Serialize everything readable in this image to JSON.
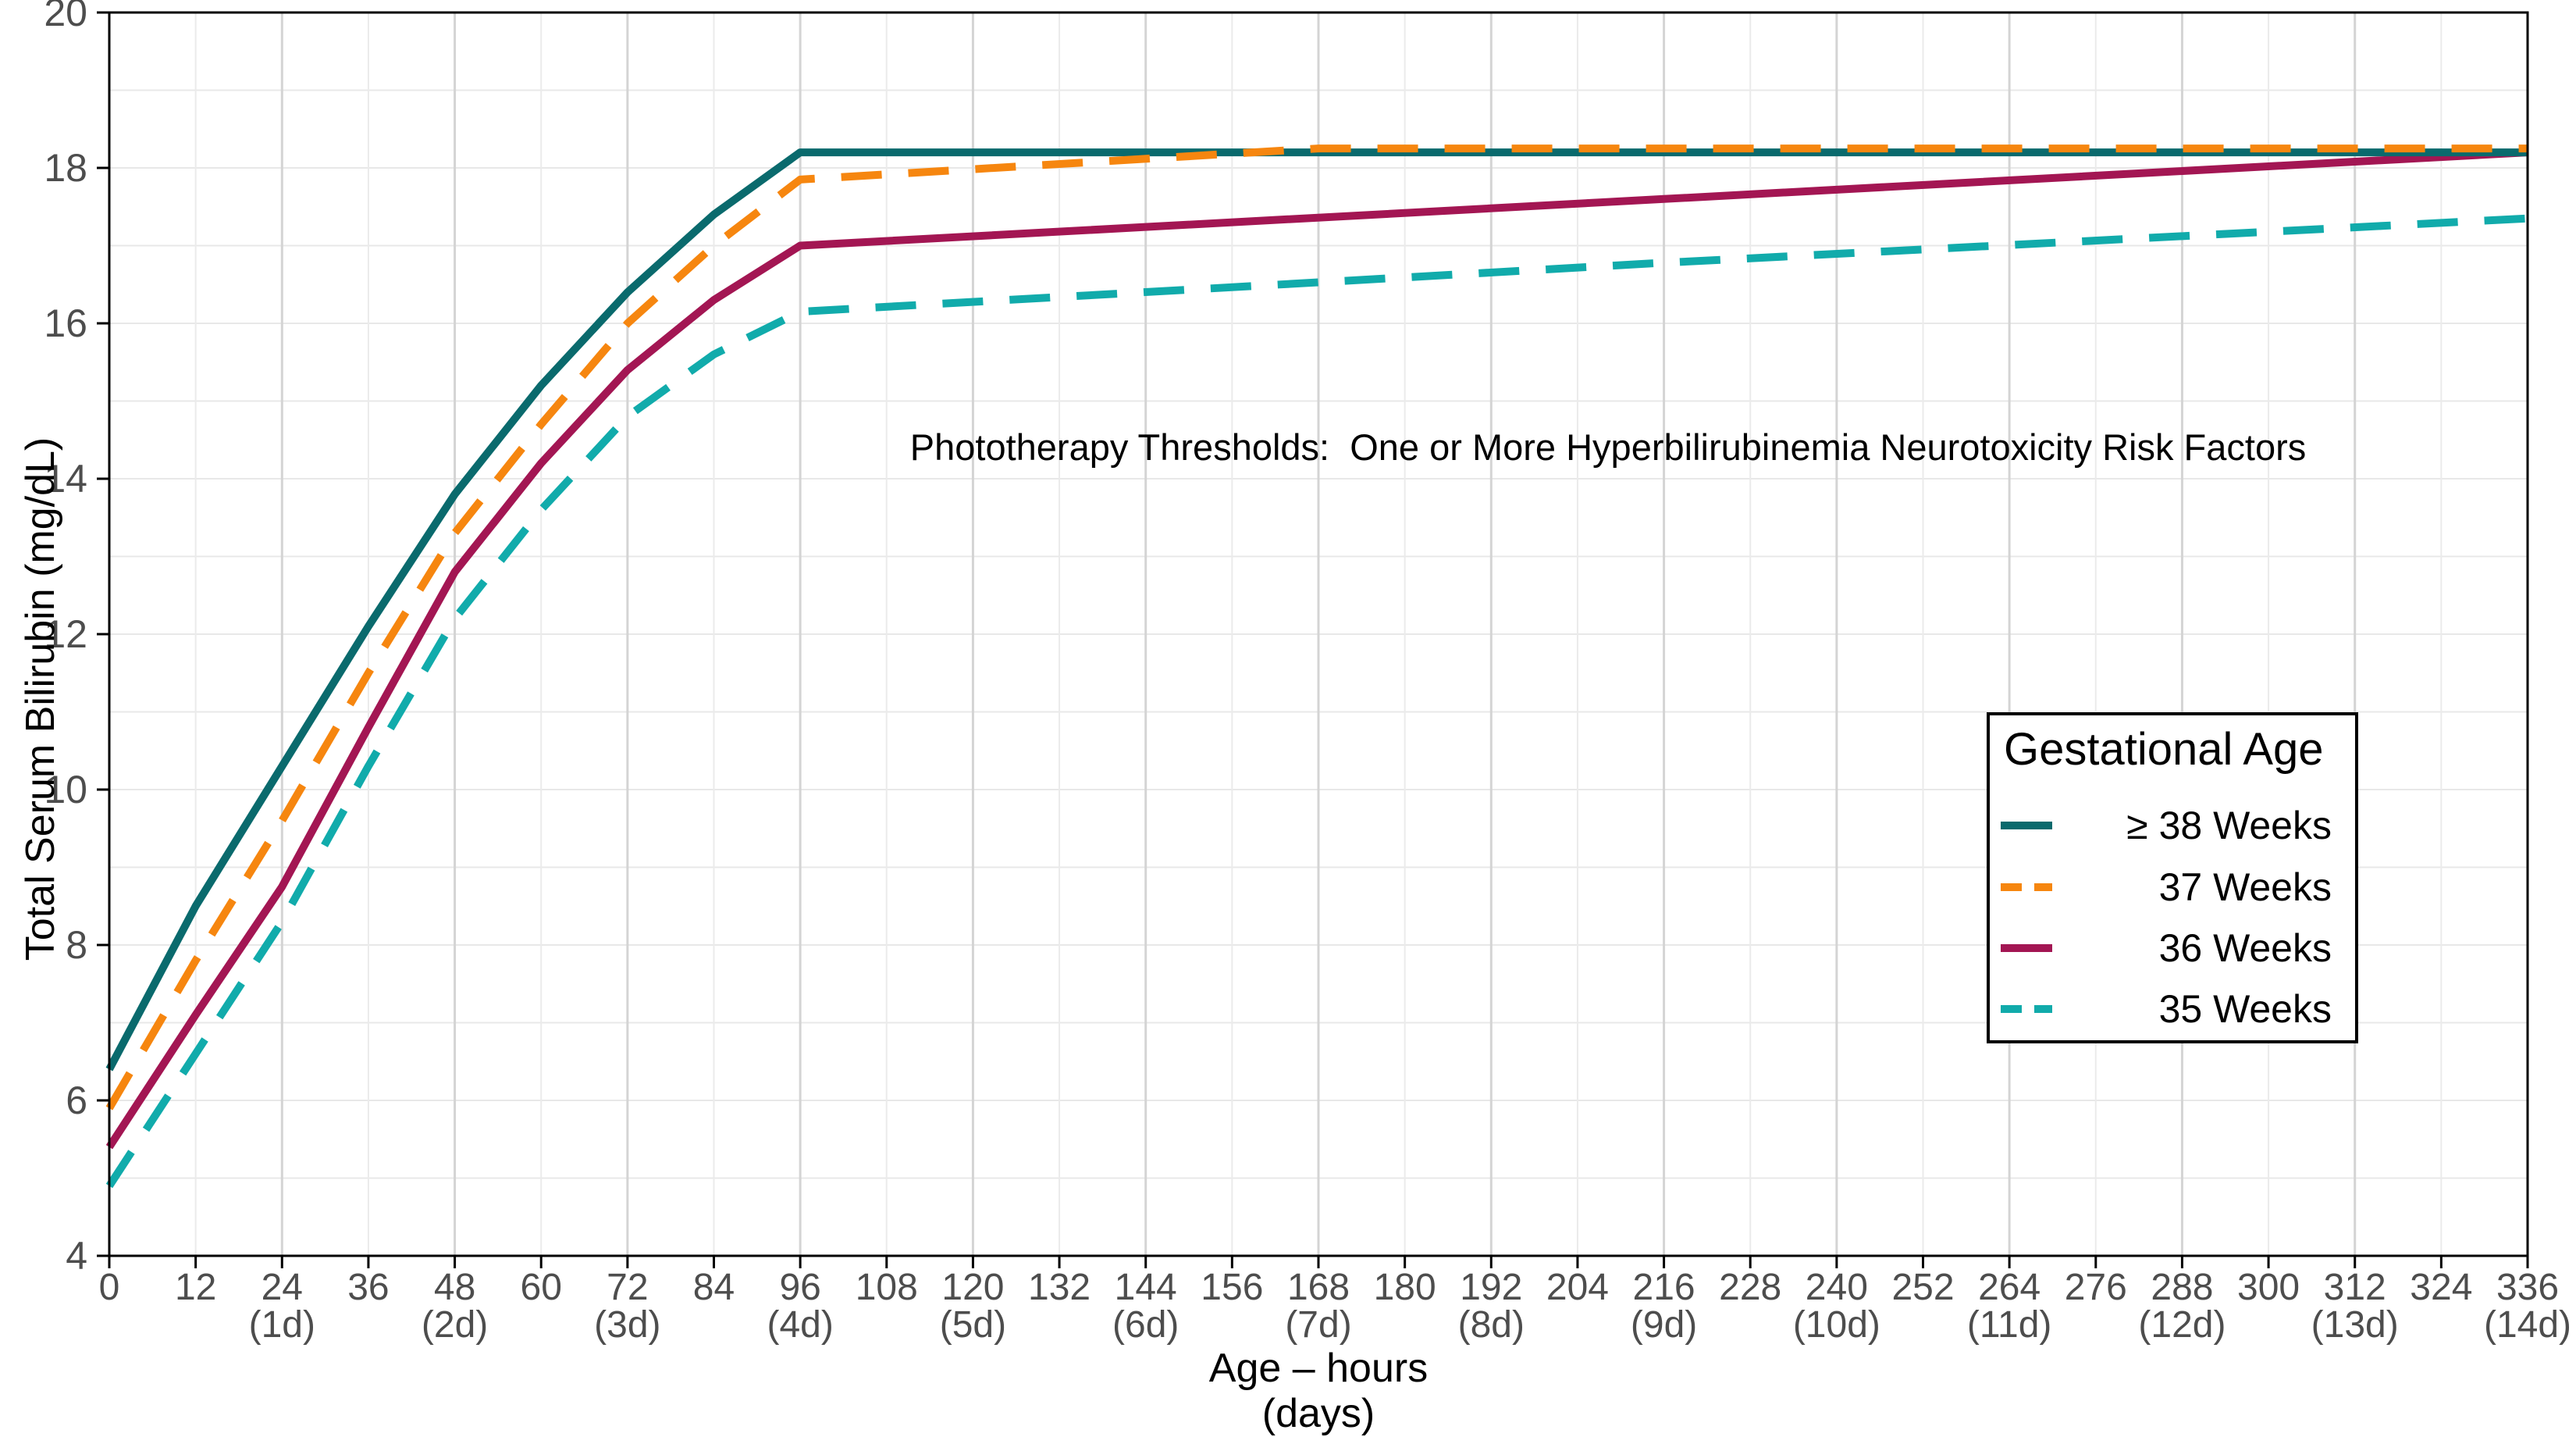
{
  "figure": {
    "title": "Phototherapy Thresholds:  One or More Hyperbilirubinemia Neurotoxicity Risk Factors",
    "y_axis_title": "Total Serum Bilirubin (mg/dL)",
    "x_axis_title_line1": "Age – hours",
    "x_axis_title_line2": "(days)"
  },
  "legend": {
    "title": "Gestational Age",
    "position": "inside-right-middle"
  },
  "chart_data": {
    "type": "line",
    "title": "Phototherapy Thresholds:  One or More Hyperbilirubinemia Neurotoxicity Risk Factors",
    "xlabel": "Age – hours (days)",
    "ylabel": "Total Serum Bilirubin (mg/dL)",
    "xlim": [
      0,
      336
    ],
    "ylim": [
      4,
      20
    ],
    "grid": true,
    "y_ticks": [
      4,
      6,
      8,
      10,
      12,
      14,
      16,
      18,
      20
    ],
    "x_tick_hours": [
      0,
      12,
      24,
      36,
      48,
      60,
      72,
      84,
      96,
      108,
      120,
      132,
      144,
      156,
      168,
      180,
      192,
      204,
      216,
      228,
      240,
      252,
      264,
      276,
      288,
      300,
      312,
      324,
      336
    ],
    "x_day_labels": {
      "24": "(1d)",
      "48": "(2d)",
      "72": "(3d)",
      "96": "(4d)",
      "120": "(5d)",
      "144": "(6d)",
      "168": "(7d)",
      "192": "(8d)",
      "216": "(9d)",
      "240": "(10d)",
      "264": "(11d)",
      "288": "(12d)",
      "312": "(13d)",
      "336": "(14d)"
    },
    "series": [
      {
        "name": "≥ 38 Weeks",
        "color": "#0A6A6D",
        "style": "solid",
        "dash": null,
        "points": [
          [
            0,
            6.4
          ],
          [
            12,
            8.5
          ],
          [
            24,
            10.3
          ],
          [
            36,
            12.1
          ],
          [
            48,
            13.8
          ],
          [
            60,
            15.2
          ],
          [
            72,
            16.4
          ],
          [
            84,
            17.4
          ],
          [
            96,
            18.2
          ],
          [
            168,
            18.2
          ],
          [
            336,
            18.2
          ]
        ]
      },
      {
        "name": "37 Weeks",
        "color": "#F6860F",
        "style": "dashed",
        "dash": "52 34",
        "points": [
          [
            0,
            5.9
          ],
          [
            12,
            7.8
          ],
          [
            24,
            9.6
          ],
          [
            36,
            11.5
          ],
          [
            48,
            13.3
          ],
          [
            60,
            14.7
          ],
          [
            72,
            16.0
          ],
          [
            84,
            17.0
          ],
          [
            96,
            17.85
          ],
          [
            168,
            18.25
          ],
          [
            336,
            18.25
          ]
        ]
      },
      {
        "name": "36 Weeks",
        "color": "#A31653",
        "style": "solid",
        "dash": null,
        "points": [
          [
            0,
            5.4
          ],
          [
            12,
            7.1
          ],
          [
            24,
            8.75
          ],
          [
            36,
            10.8
          ],
          [
            48,
            12.8
          ],
          [
            60,
            14.2
          ],
          [
            72,
            15.4
          ],
          [
            84,
            16.3
          ],
          [
            96,
            17.0
          ],
          [
            216,
            17.6
          ],
          [
            336,
            18.2
          ]
        ]
      },
      {
        "name": "35 Weeks",
        "color": "#11ABAB",
        "style": "dashed",
        "dash": "52 34",
        "points": [
          [
            0,
            4.9
          ],
          [
            12,
            6.6
          ],
          [
            24,
            8.3
          ],
          [
            36,
            10.3
          ],
          [
            48,
            12.2
          ],
          [
            60,
            13.6
          ],
          [
            72,
            14.8
          ],
          [
            84,
            15.6
          ],
          [
            96,
            16.15
          ],
          [
            216,
            16.78
          ],
          [
            336,
            17.35
          ]
        ]
      }
    ],
    "draw_order": [
      2,
      0,
      1,
      3
    ],
    "line_width": 10,
    "colors": {
      "axis": "#000000",
      "tick_label": "#4D4D4D",
      "grid_horizontal": "#E8E8E8",
      "grid_minor_vertical": "#EBEBEB",
      "grid_major_vertical": "#D4D4D4"
    }
  }
}
